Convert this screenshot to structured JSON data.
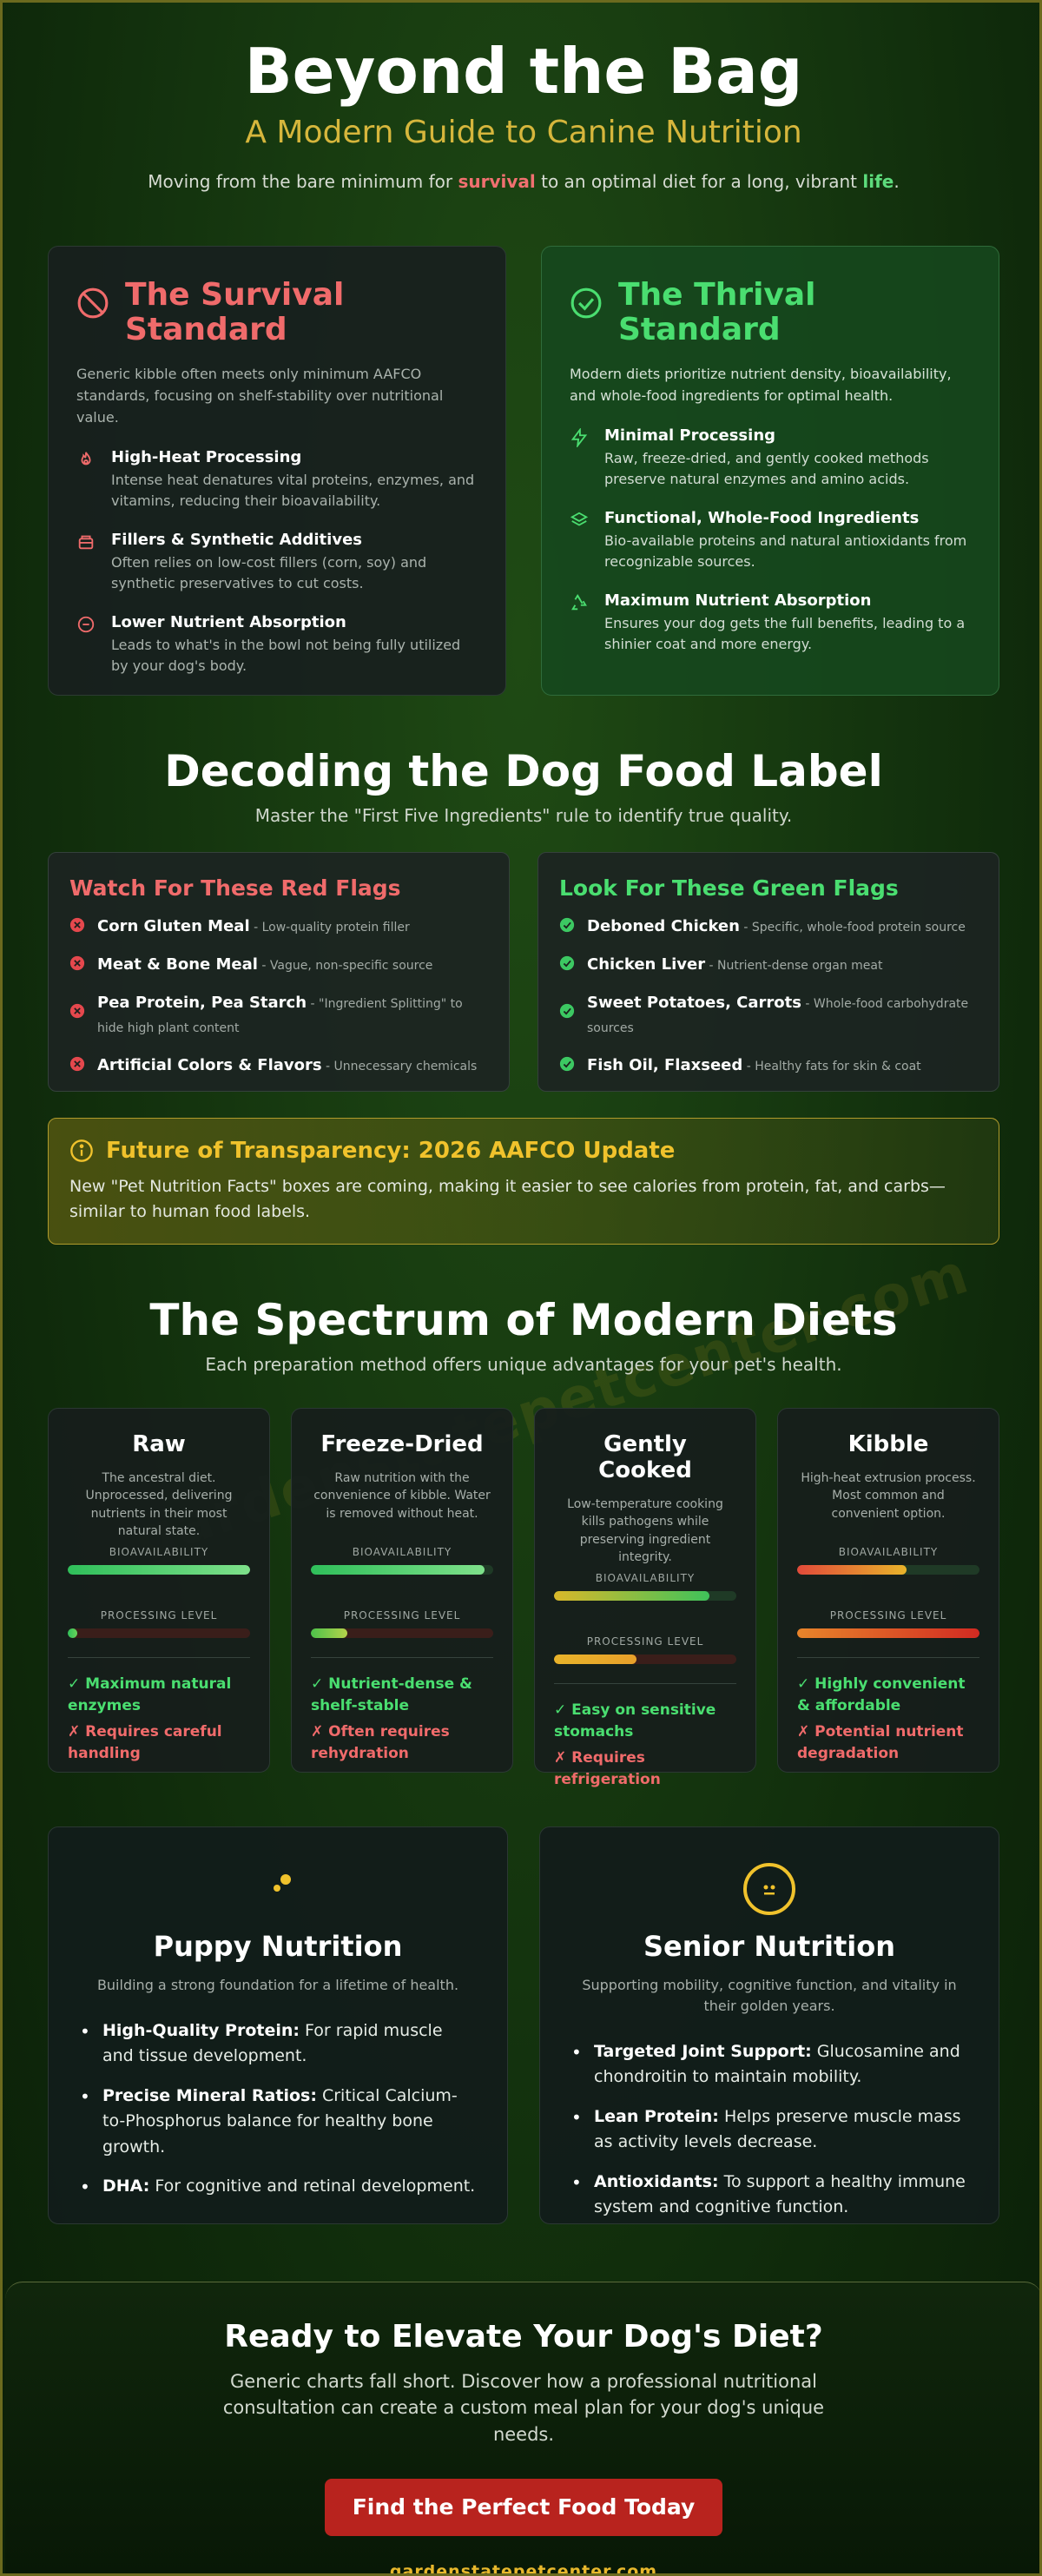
{
  "header": {
    "title": "Beyond the Bag",
    "subtitle": "A Modern Guide to Canine Nutrition",
    "lede_pre": "Moving from the bare minimum for ",
    "lede_red": "survival",
    "lede_mid": " to an optimal diet for a long, vibrant ",
    "lede_green": "life",
    "lede_post": "."
  },
  "watermark": "gardenstatepetcenter.com",
  "survival": {
    "title": "The Survival Standard",
    "icon": "ban-icon",
    "description": "Generic kibble often meets only minimum AAFCO standards, focusing on shelf-stability over nutritional value.",
    "items": [
      {
        "icon": "flame-icon",
        "title": "High-Heat Processing",
        "text": "Intense heat denatures vital proteins, enzymes, and vitamins, reducing their bioavailability."
      },
      {
        "icon": "container-icon",
        "title": "Fillers & Synthetic Additives",
        "text": "Often relies on low-cost fillers (corn, soy) and synthetic preservatives to cut costs."
      },
      {
        "icon": "minus-circle-icon",
        "title": "Lower Nutrient Absorption",
        "text": "Leads to what's in the bowl not being fully utilized by your dog's body."
      }
    ]
  },
  "thrival": {
    "title": "The Thrival Standard",
    "icon": "check-circle-icon",
    "description": "Modern diets prioritize nutrient density, bioavailability, and whole-food ingredients for optimal health.",
    "items": [
      {
        "icon": "bolt-icon",
        "title": "Minimal Processing",
        "text": "Raw, freeze-dried, and gently cooked methods preserve natural enzymes and amino acids."
      },
      {
        "icon": "layers-icon",
        "title": "Functional, Whole-Food Ingredients",
        "text": "Bio-available proteins and natural antioxidants from recognizable sources."
      },
      {
        "icon": "recycle-icon",
        "title": "Maximum Nutrient Absorption",
        "text": "Ensures your dog gets the full benefits, leading to a shinier coat and more energy."
      }
    ]
  },
  "label_section": {
    "title": "Decoding the Dog Food Label",
    "subtitle": "Master the \"First Five Ingredients\" rule to identify true quality."
  },
  "red_flags": {
    "title": "Watch For These Red Flags",
    "items": [
      {
        "name": "Corn Gluten Meal",
        "desc": " - Low-quality protein filler"
      },
      {
        "name": "Meat & Bone Meal",
        "desc": " - Vague, non-specific source"
      },
      {
        "name": "Pea Protein, Pea Starch",
        "desc": " - \"Ingredient Splitting\" to hide high plant content"
      },
      {
        "name": "Artificial Colors & Flavors",
        "desc": " - Unnecessary chemicals"
      }
    ]
  },
  "green_flags": {
    "title": "Look For These Green Flags",
    "items": [
      {
        "name": "Deboned Chicken",
        "desc": " - Specific, whole-food protein source"
      },
      {
        "name": "Chicken Liver",
        "desc": " - Nutrient-dense organ meat"
      },
      {
        "name": "Sweet Potatoes, Carrots",
        "desc": " - Whole-food carbohydrate sources"
      },
      {
        "name": "Fish Oil, Flaxseed",
        "desc": " - Healthy fats for skin & coat"
      }
    ]
  },
  "notice": {
    "icon": "info-icon",
    "title": "Future of Transparency: 2026 AAFCO Update",
    "text": "New \"Pet Nutrition Facts\" boxes are coming, making it easier to see calories from protein, fat, and carbs—similar to human food labels."
  },
  "diets_section": {
    "title": "The Spectrum of Modern Diets",
    "subtitle": "Each preparation method offers unique advantages for your pet's health.",
    "bio_label": "BIOAVAILABILITY",
    "proc_label": "PROCESSING LEVEL"
  },
  "diets": [
    {
      "name": "Raw",
      "desc": "The ancestral diet. Unprocessed, delivering nutrients in their most natural state.",
      "bioavailability": 100,
      "processing": 5,
      "bio_gradient": [
        "#2fbf5a",
        "#7ee08a"
      ],
      "proc_gradient": [
        "#2fbf5a",
        "#6ad35a"
      ],
      "pro": "✓ Maximum natural enzymes",
      "con": "✗ Requires careful handling"
    },
    {
      "name": "Freeze-Dried",
      "desc": "Raw nutrition with the convenience of kibble. Water is removed without heat.",
      "bioavailability": 95,
      "processing": 20,
      "bio_gradient": [
        "#2fbf5a",
        "#7ee08a"
      ],
      "proc_gradient": [
        "#4cc24a",
        "#b5d24a"
      ],
      "pro": "✓ Nutrient-dense & shelf-stable",
      "con": "✗ Often requires rehydration"
    },
    {
      "name": "Gently Cooked",
      "desc": "Low-temperature cooking kills pathogens while preserving ingredient integrity.",
      "bioavailability": 85,
      "processing": 45,
      "bio_gradient": [
        "#d9b82a",
        "#3fc25a"
      ],
      "proc_gradient": [
        "#e8b32a",
        "#e8a02a"
      ],
      "pro": "✓ Easy on sensitive stomachs",
      "con": "✗ Requires refrigeration"
    },
    {
      "name": "Kibble",
      "desc": "High-heat extrusion process. Most common and convenient option.",
      "bioavailability": 60,
      "processing": 100,
      "bio_gradient": [
        "#e24a3a",
        "#e8b32a"
      ],
      "proc_gradient": [
        "#e8852a",
        "#d22a22"
      ],
      "pro": "✓ Highly convenient & affordable",
      "con": "✗ Potential nutrient degradation"
    }
  ],
  "puppy": {
    "icon": "puppy-dots-icon",
    "title": "Puppy Nutrition",
    "desc": "Building a strong foundation for a lifetime of health.",
    "items": [
      {
        "bold": "High-Quality Protein:",
        "text": " For rapid muscle and tissue development."
      },
      {
        "bold": "Precise Mineral Ratios:",
        "text": " Critical Calcium-to-Phosphorus balance for healthy bone growth."
      },
      {
        "bold": "DHA:",
        "text": " For cognitive and retinal development."
      }
    ]
  },
  "senior": {
    "icon": "senior-circle-icon",
    "title": "Senior Nutrition",
    "desc": "Supporting mobility, cognitive function, and vitality in their golden years.",
    "items": [
      {
        "bold": "Targeted Joint Support:",
        "text": " Glucosamine and chondroitin to maintain mobility."
      },
      {
        "bold": "Lean Protein:",
        "text": " Helps preserve muscle mass as activity levels decrease."
      },
      {
        "bold": "Antioxidants:",
        "text": " To support a healthy immune system and cognitive function."
      }
    ]
  },
  "cta": {
    "title": "Ready to Elevate Your Dog's Diet?",
    "text": "Generic charts fall short. Discover how a professional nutritional consultation can create a custom meal plan for your dog's unique needs.",
    "button": "Find the Perfect Food Today",
    "site": "gardenstatepetcenter.com"
  },
  "colors": {
    "survival_red": "#f06b6b",
    "thrival_green": "#4ade70",
    "gold": "#f0c22c",
    "cta_button": "#b8231e"
  }
}
